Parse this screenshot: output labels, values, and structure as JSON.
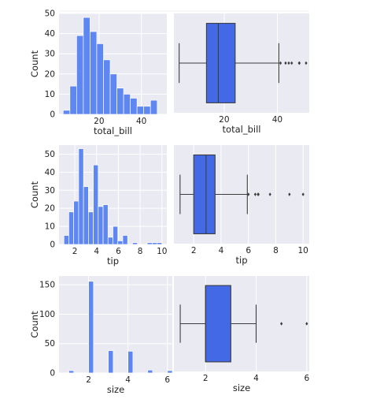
{
  "colors": {
    "background": "#eaeaf2",
    "grid": "#ffffff",
    "hist": "#5f87f2",
    "box": "#4369e6",
    "line": "#3d3d3d",
    "text": "#222222"
  },
  "chart_data": [
    {
      "type": "bar",
      "subtype": "histogram",
      "xlabel": "total_bill",
      "ylabel": "Count",
      "xlim": [
        1.1,
        52.0
      ],
      "ylim": [
        0,
        50
      ],
      "xticks": [
        20,
        40
      ],
      "yticks": [
        0,
        10,
        20,
        30,
        40,
        50
      ],
      "bin_start": 3.07,
      "bin_width": 3.17,
      "values": [
        2,
        14,
        39,
        48,
        41,
        35,
        27,
        20,
        13,
        10,
        8,
        4,
        4,
        7
      ]
    },
    {
      "type": "box",
      "xlabel": "total_bill",
      "xlim": [
        1.1,
        52.0
      ],
      "xticks": [
        20,
        40
      ],
      "whisker_low": 3.07,
      "q1": 13.35,
      "median": 17.8,
      "q3": 24.13,
      "whisker_high": 40.55,
      "outliers": [
        41.2,
        43.1,
        44.3,
        45.4,
        48.2,
        48.3,
        50.8
      ]
    },
    {
      "type": "bar",
      "subtype": "histogram",
      "xlabel": "tip",
      "ylabel": "Count",
      "xlim": [
        0.55,
        10.45
      ],
      "ylim": [
        0,
        55
      ],
      "xticks": [
        2,
        4,
        6,
        8,
        10
      ],
      "yticks": [
        0,
        10,
        20,
        30,
        40,
        50
      ],
      "bin_start": 1.0,
      "bin_width": 0.45,
      "values": [
        5,
        18,
        24,
        53,
        32,
        18,
        44,
        21,
        22,
        4,
        10,
        2,
        5,
        0,
        1,
        0,
        0,
        1,
        1,
        1
      ]
    },
    {
      "type": "box",
      "xlabel": "tip",
      "xlim": [
        0.55,
        10.45
      ],
      "xticks": [
        2,
        4,
        6,
        8,
        10
      ],
      "whisker_low": 1.0,
      "q1": 2.0,
      "median": 2.9,
      "q3": 3.56,
      "whisker_high": 5.92,
      "outliers": [
        6.0,
        6.5,
        6.7,
        6.73,
        7.58,
        9.0,
        10.0
      ]
    },
    {
      "type": "bar",
      "subtype": "histogram",
      "xlabel": "size",
      "ylabel": "Count",
      "xlim": [
        0.5,
        6.25
      ],
      "ylim": [
        0,
        165
      ],
      "xticks": [
        2,
        4,
        6
      ],
      "yticks": [
        0,
        50,
        100,
        150
      ],
      "bin_start": 1.0,
      "bin_width": 0.25,
      "values": [
        4,
        0,
        0,
        0,
        156,
        0,
        0,
        0,
        38,
        0,
        0,
        0,
        37,
        0,
        0,
        0,
        5,
        0,
        0,
        0,
        4
      ]
    },
    {
      "type": "box",
      "xlabel": "size",
      "xlim": [
        0.75,
        6.1
      ],
      "xticks": [
        2,
        4,
        6
      ],
      "whisker_low": 1,
      "q1": 2,
      "median": 2,
      "q3": 3,
      "whisker_high": 4,
      "outliers": [
        5,
        6
      ]
    }
  ]
}
